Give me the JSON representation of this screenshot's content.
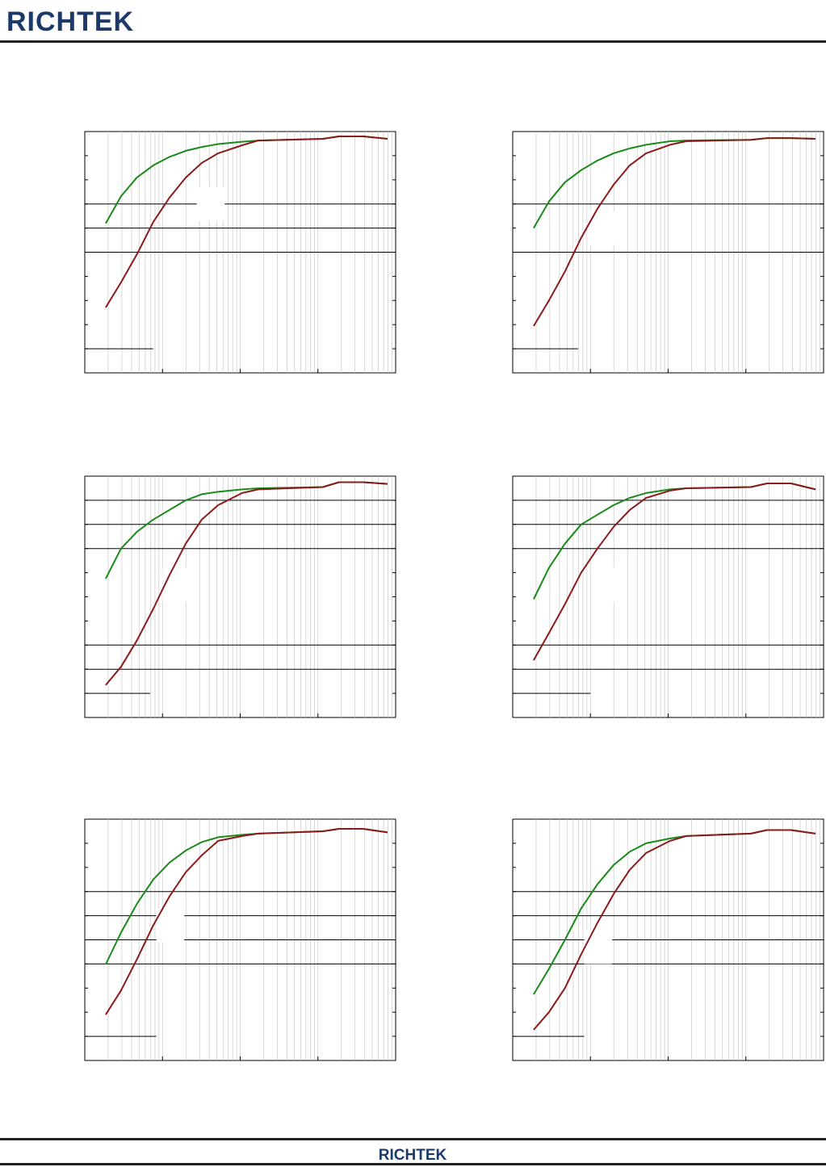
{
  "header": {
    "logo": "RICHTEK"
  },
  "footer": {
    "logo": "RICHTEK"
  },
  "chart_data": [
    {
      "type": "line",
      "log_x": true,
      "xlim": [
        1,
        10000
      ],
      "ylim": [
        0,
        100
      ],
      "grid": true,
      "x": [
        1.86,
        2.93,
        4.7,
        7.6,
        12.3,
        19.9,
        32,
        52,
        106,
        171,
        1160,
        1870,
        3810,
        7870
      ],
      "series": [
        {
          "color": "#1a8a1a",
          "values": [
            61.9,
            73.2,
            81,
            86,
            89.5,
            92,
            93.6,
            94.8,
            95.8,
            96.3,
            97,
            98,
            98,
            97
          ]
        },
        {
          "color": "#8b1a1a",
          "values": [
            27.1,
            37.5,
            49.2,
            62.5,
            72.6,
            80.9,
            87,
            91,
            94.3,
            96.3,
            97,
            98,
            98,
            97
          ]
        }
      ]
    },
    {
      "type": "line",
      "log_x": true,
      "xlim": [
        1,
        10000
      ],
      "ylim": [
        0,
        100
      ],
      "grid": true,
      "x": [
        1.86,
        2.93,
        4.7,
        7.6,
        12.3,
        19.9,
        32,
        52,
        106,
        171,
        1160,
        1870,
        3810,
        7870
      ],
      "series": [
        {
          "color": "#1a8a1a",
          "values": [
            60,
            71,
            79,
            84,
            88,
            91,
            93,
            94.5,
            96,
            96.3,
            96.6,
            97.3,
            97.3,
            97
          ]
        },
        {
          "color": "#8b1a1a",
          "values": [
            19.4,
            30,
            42,
            56,
            68,
            78,
            86,
            91,
            94.5,
            96,
            96.6,
            97.3,
            97.3,
            97
          ]
        }
      ]
    },
    {
      "type": "line",
      "log_x": true,
      "xlim": [
        1,
        10000
      ],
      "ylim": [
        0,
        100
      ],
      "grid": true,
      "x": [
        1.86,
        2.93,
        4.7,
        7.6,
        12.3,
        19.9,
        32,
        52,
        106,
        171,
        1160,
        1870,
        3810,
        7870
      ],
      "series": [
        {
          "color": "#1a8a1a",
          "values": [
            57.5,
            70,
            77,
            82,
            86,
            90,
            92.5,
            93.5,
            94.5,
            95,
            95.5,
            97.5,
            97.5,
            96.8
          ]
        },
        {
          "color": "#8b1a1a",
          "values": [
            13.4,
            21,
            32,
            45,
            59,
            72,
            82,
            88,
            93,
            94.5,
            95.5,
            97.5,
            97.5,
            96.8
          ]
        }
      ]
    },
    {
      "type": "line",
      "log_x": true,
      "xlim": [
        1,
        10000
      ],
      "ylim": [
        0,
        100
      ],
      "grid": true,
      "x": [
        1.86,
        2.93,
        4.7,
        7.6,
        12.3,
        19.9,
        32,
        52,
        106,
        171,
        1160,
        1870,
        3810,
        7870
      ],
      "series": [
        {
          "color": "#1a8a1a",
          "values": [
            49,
            62,
            72,
            80,
            84,
            88,
            91,
            93,
            94.5,
            95,
            95.5,
            97,
            97,
            94.5
          ]
        },
        {
          "color": "#8b1a1a",
          "values": [
            23.7,
            35,
            47,
            60,
            70,
            79,
            86,
            91,
            94,
            95,
            95.5,
            97,
            97,
            94.5
          ]
        }
      ]
    },
    {
      "type": "line",
      "log_x": true,
      "xlim": [
        1,
        10000
      ],
      "ylim": [
        0,
        100
      ],
      "grid": true,
      "x": [
        1.86,
        2.93,
        4.7,
        7.6,
        12.3,
        19.9,
        32,
        52,
        106,
        171,
        1160,
        1870,
        3810,
        7870
      ],
      "series": [
        {
          "color": "#1a8a1a",
          "values": [
            39.8,
            53,
            65,
            75,
            82,
            87,
            90.5,
            92.5,
            93.5,
            94,
            95,
            96,
            96,
            94.5
          ]
        },
        {
          "color": "#8b1a1a",
          "values": [
            19,
            29,
            42,
            56,
            68,
            78,
            85,
            91,
            93,
            94,
            95,
            96,
            96,
            94.5
          ]
        }
      ]
    },
    {
      "type": "line",
      "log_x": true,
      "xlim": [
        1,
        10000
      ],
      "ylim": [
        0,
        100
      ],
      "grid": true,
      "x": [
        1.86,
        2.93,
        4.7,
        7.6,
        12.3,
        19.9,
        32,
        52,
        106,
        171,
        1160,
        1870,
        3810,
        7870
      ],
      "series": [
        {
          "color": "#1a8a1a",
          "values": [
            27.4,
            38,
            50,
            63,
            73,
            81,
            86.5,
            90,
            92,
            93,
            94,
            95.5,
            95.5,
            94
          ]
        },
        {
          "color": "#8b1a1a",
          "values": [
            12.7,
            20,
            30,
            44,
            57,
            69,
            79,
            86,
            91,
            93,
            94,
            95.5,
            95.5,
            94
          ]
        }
      ]
    }
  ]
}
